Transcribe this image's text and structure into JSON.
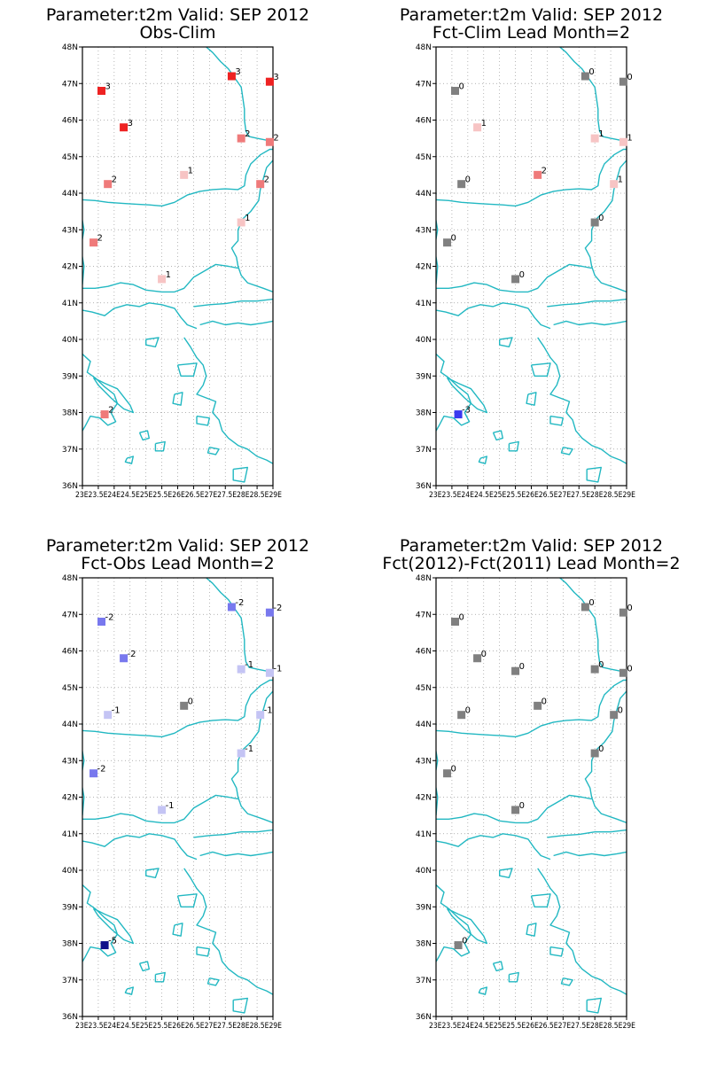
{
  "figure": {
    "panels": [
      {
        "title1": "Parameter:t2m Valid: SEP 2012",
        "title2": "Obs-Clim",
        "stations": [
          {
            "lon": 23.6,
            "lat": 46.8,
            "value": 3
          },
          {
            "lon": 27.7,
            "lat": 47.2,
            "value": 3
          },
          {
            "lon": 28.9,
            "lat": 47.05,
            "value": 3
          },
          {
            "lon": 24.3,
            "lat": 45.8,
            "value": 3
          },
          {
            "lon": 28.0,
            "lat": 45.5,
            "value": 2
          },
          {
            "lon": 28.9,
            "lat": 45.4,
            "value": 2
          },
          {
            "lon": 26.2,
            "lat": 44.5,
            "value": 1
          },
          {
            "lon": 23.8,
            "lat": 44.25,
            "value": 2
          },
          {
            "lon": 28.6,
            "lat": 44.25,
            "value": 2
          },
          {
            "lon": 28.0,
            "lat": 43.2,
            "value": 1
          },
          {
            "lon": 23.35,
            "lat": 42.65,
            "value": 2
          },
          {
            "lon": 25.5,
            "lat": 41.65,
            "value": 1
          },
          {
            "lon": 23.7,
            "lat": 37.95,
            "value": 2
          }
        ]
      },
      {
        "title1": "Parameter:t2m Valid: SEP 2012",
        "title2": "Fct-Clim Lead Month=2",
        "stations": [
          {
            "lon": 23.6,
            "lat": 46.8,
            "value": 0
          },
          {
            "lon": 27.7,
            "lat": 47.2,
            "value": 0
          },
          {
            "lon": 28.9,
            "lat": 47.05,
            "value": 0
          },
          {
            "lon": 24.3,
            "lat": 45.8,
            "value": 1
          },
          {
            "lon": 28.0,
            "lat": 45.5,
            "value": 1
          },
          {
            "lon": 28.9,
            "lat": 45.4,
            "value": 1
          },
          {
            "lon": 26.2,
            "lat": 44.5,
            "value": 2
          },
          {
            "lon": 23.8,
            "lat": 44.25,
            "value": 0
          },
          {
            "lon": 28.6,
            "lat": 44.25,
            "value": 1
          },
          {
            "lon": 28.0,
            "lat": 43.2,
            "value": 0
          },
          {
            "lon": 23.35,
            "lat": 42.65,
            "value": 0
          },
          {
            "lon": 25.5,
            "lat": 41.65,
            "value": 0
          },
          {
            "lon": 23.7,
            "lat": 37.95,
            "value": -3
          }
        ]
      },
      {
        "title1": "Parameter:t2m Valid: SEP 2012",
        "title2": "Fct-Obs Lead Month=2",
        "stations": [
          {
            "lon": 23.6,
            "lat": 46.8,
            "value": -2
          },
          {
            "lon": 27.7,
            "lat": 47.2,
            "value": -2
          },
          {
            "lon": 28.9,
            "lat": 47.05,
            "value": -2
          },
          {
            "lon": 24.3,
            "lat": 45.8,
            "value": -2
          },
          {
            "lon": 28.0,
            "lat": 45.5,
            "value": -1
          },
          {
            "lon": 28.9,
            "lat": 45.4,
            "value": -1
          },
          {
            "lon": 26.2,
            "lat": 44.5,
            "value": 0
          },
          {
            "lon": 23.8,
            "lat": 44.25,
            "value": -1
          },
          {
            "lon": 28.6,
            "lat": 44.25,
            "value": -1
          },
          {
            "lon": 28.0,
            "lat": 43.2,
            "value": -1
          },
          {
            "lon": 23.35,
            "lat": 42.65,
            "value": -2
          },
          {
            "lon": 25.5,
            "lat": 41.65,
            "value": -1
          },
          {
            "lon": 23.7,
            "lat": 37.95,
            "value": -5
          }
        ]
      },
      {
        "title1": "Parameter:t2m Valid: SEP 2012",
        "title2": "Fct(2012)-Fct(2011) Lead Month=2",
        "stations": [
          {
            "lon": 23.6,
            "lat": 46.8,
            "value": 0
          },
          {
            "lon": 27.7,
            "lat": 47.2,
            "value": 0
          },
          {
            "lon": 28.9,
            "lat": 47.05,
            "value": 0
          },
          {
            "lon": 24.3,
            "lat": 45.8,
            "value": 0
          },
          {
            "lon": 25.5,
            "lat": 45.45,
            "value": 0
          },
          {
            "lon": 28.0,
            "lat": 45.5,
            "value": 0
          },
          {
            "lon": 28.9,
            "lat": 45.4,
            "value": 0
          },
          {
            "lon": 26.2,
            "lat": 44.5,
            "value": 0
          },
          {
            "lon": 23.8,
            "lat": 44.25,
            "value": 0
          },
          {
            "lon": 28.6,
            "lat": 44.25,
            "value": 0
          },
          {
            "lon": 28.0,
            "lat": 43.2,
            "value": 0
          },
          {
            "lon": 23.35,
            "lat": 42.65,
            "value": 0
          },
          {
            "lon": 25.5,
            "lat": 41.65,
            "value": 0
          },
          {
            "lon": 23.7,
            "lat": 37.95,
            "value": 0
          }
        ]
      }
    ],
    "y_ticks": [
      "36N",
      "37N",
      "38N",
      "39N",
      "40N",
      "41N",
      "42N",
      "43N",
      "44N",
      "45N",
      "46N",
      "47N",
      "48N"
    ],
    "x_ticks": [
      "23E",
      "23.5E",
      "24E",
      "24.5E",
      "25E",
      "25.5E",
      "26E",
      "26.5E",
      "27E",
      "27.5E",
      "28E",
      "28.5E",
      "29E"
    ],
    "x_tick_text": "23E23.5E24E24.5E25E25.5E26E26.5E27E27.5E28E28.5E29E",
    "colors": {
      "coast": "#22b8c2",
      "zero": "#808080",
      "pos1": "#f7c4c4",
      "pos2": "#ef7a7a",
      "pos3": "#ee2222",
      "neg1": "#c4c4f4",
      "neg2": "#7878ee",
      "neg3": "#3a3af0",
      "neg5": "#10108a"
    }
  }
}
